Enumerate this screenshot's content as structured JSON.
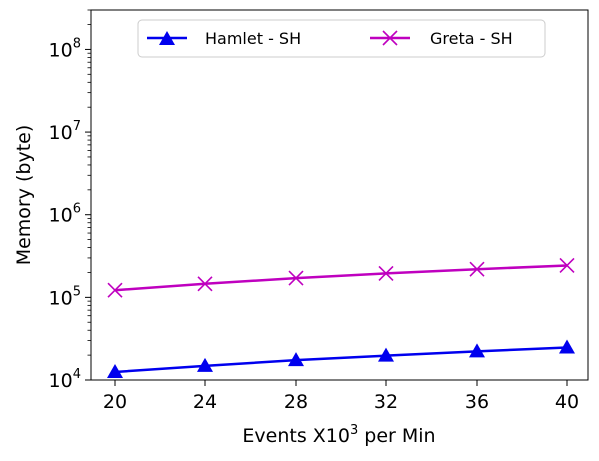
{
  "chart_data": {
    "type": "line",
    "x": [
      20,
      24,
      28,
      32,
      36,
      40
    ],
    "xticks": [
      "20",
      "24",
      "28",
      "32",
      "36",
      "40"
    ],
    "xlabel": "Events X10",
    "xlabel_sup": "3",
    "xlabel_tail": " per Min",
    "ylabel": "Memory (byte)",
    "yscale": "log",
    "ylim": [
      10000,
      300000000
    ],
    "yticks": [
      {
        "value": 10000,
        "base": "10",
        "exp": "4"
      },
      {
        "value": 100000,
        "base": "10",
        "exp": "5"
      },
      {
        "value": 1000000,
        "base": "10",
        "exp": "6"
      },
      {
        "value": 10000000,
        "base": "10",
        "exp": "7"
      },
      {
        "value": 100000000,
        "base": "10",
        "exp": "8"
      }
    ],
    "grid": false,
    "legend_position": "top-center",
    "series": [
      {
        "name": "Hamlet - SH",
        "color": "#0000ee",
        "marker": "triangle",
        "values": [
          12500,
          14800,
          17400,
          19700,
          22200,
          24700
        ]
      },
      {
        "name": "Greta - SH",
        "color": "#bf00bf",
        "marker": "x",
        "values": [
          122000,
          146000,
          171000,
          195000,
          219000,
          243000
        ]
      }
    ]
  }
}
